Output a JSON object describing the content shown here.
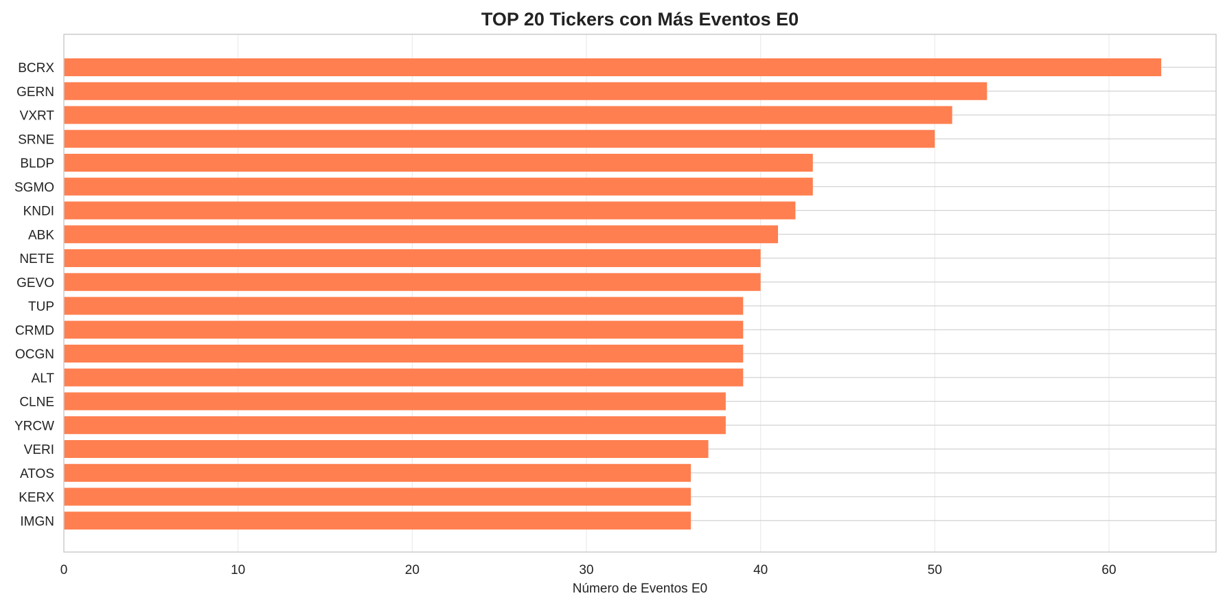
{
  "chart_data": {
    "type": "bar",
    "orientation": "horizontal",
    "title": "TOP 20 Tickers con Más Eventos E0",
    "xlabel": "Número de Eventos E0",
    "ylabel": "",
    "categories": [
      "BCRX",
      "GERN",
      "VXRT",
      "SRNE",
      "BLDP",
      "SGMO",
      "KNDI",
      "ABK",
      "NETE",
      "GEVO",
      "TUP",
      "CRMD",
      "OCGN",
      "ALT",
      "CLNE",
      "YRCW",
      "VERI",
      "ATOS",
      "KERX",
      "IMGN"
    ],
    "values": [
      63,
      53,
      51,
      50,
      43,
      43,
      42,
      41,
      40,
      40,
      39,
      39,
      39,
      39,
      38,
      38,
      37,
      36,
      36,
      36
    ],
    "xlim": [
      0,
      66.15
    ],
    "xticks": [
      0,
      10,
      20,
      30,
      40,
      50,
      60
    ],
    "grid": true,
    "bar_color": "#ff7f50"
  }
}
